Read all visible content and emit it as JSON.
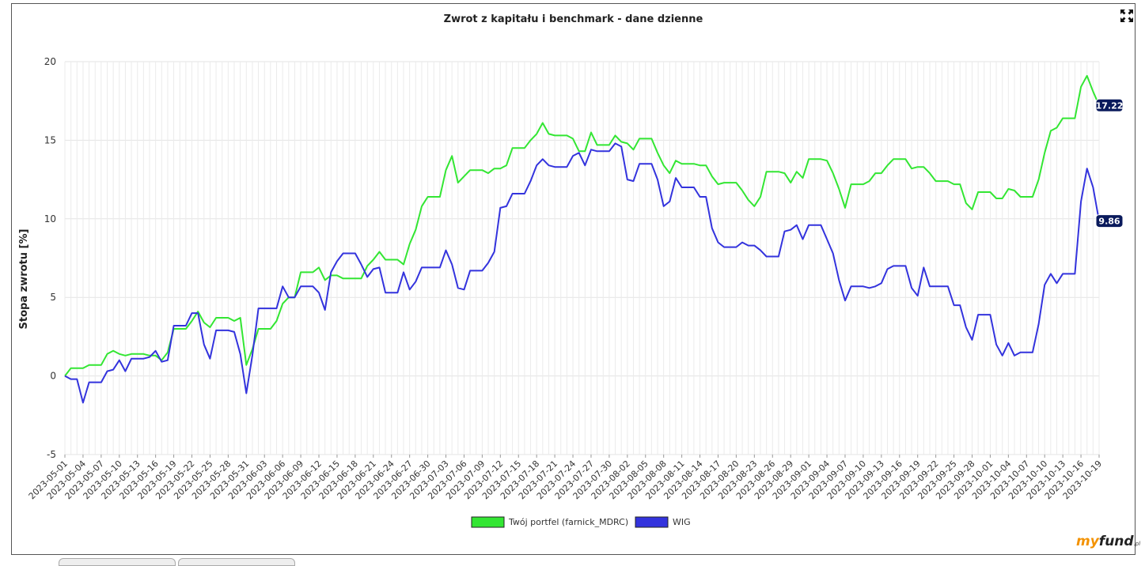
{
  "chart_data": {
    "type": "line",
    "title": "Zwrot z kapitału i benchmark - dane dzienne",
    "ylabel": "Stopa zwrotu [%]",
    "xlabel": "",
    "ylim": [
      -5,
      20
    ],
    "yticks": [
      -5,
      0,
      5,
      10,
      15,
      20
    ],
    "grid": true,
    "legend_position": "bottom",
    "xticks": [
      "2023-05-01",
      "2023-05-04",
      "2023-05-07",
      "2023-05-10",
      "2023-05-13",
      "2023-05-16",
      "2023-05-19",
      "2023-05-22",
      "2023-05-25",
      "2023-05-28",
      "2023-05-31",
      "2023-06-03",
      "2023-06-06",
      "2023-06-09",
      "2023-06-12",
      "2023-06-15",
      "2023-06-18",
      "2023-06-21",
      "2023-06-24",
      "2023-06-27",
      "2023-06-30",
      "2023-07-03",
      "2023-07-06",
      "2023-07-09",
      "2023-07-12",
      "2023-07-15",
      "2023-07-18",
      "2023-07-21",
      "2023-07-24",
      "2023-07-27",
      "2023-07-30",
      "2023-08-02",
      "2023-08-05",
      "2023-08-08",
      "2023-08-11",
      "2023-08-14",
      "2023-08-17",
      "2023-08-20",
      "2023-08-23",
      "2023-08-26",
      "2023-08-29",
      "2023-09-01",
      "2023-09-04",
      "2023-09-07",
      "2023-09-10",
      "2023-09-13",
      "2023-09-16",
      "2023-09-19",
      "2023-09-22",
      "2023-09-25",
      "2023-09-28",
      "2023-10-01",
      "2023-10-04",
      "2023-10-07",
      "2023-10-10",
      "2023-10-13",
      "2023-10-16",
      "2023-10-19"
    ],
    "series": [
      {
        "name": "Twój portfel (farnick_MDRC)",
        "color": "#33e633",
        "end_label": "17.22",
        "values": [
          0,
          0.5,
          0.5,
          0.5,
          0.7,
          0.7,
          0.7,
          1.4,
          1.6,
          1.4,
          1.3,
          1.4,
          1.4,
          1.4,
          1.3,
          1.3,
          1.0,
          1.5,
          3.0,
          3.0,
          3.0,
          3.5,
          4.1,
          3.4,
          3.1,
          3.7,
          3.7,
          3.7,
          3.5,
          3.7,
          0.7,
          1.7,
          3.0,
          3.0,
          3.0,
          3.5,
          4.6,
          5.0,
          5.0,
          6.6,
          6.6,
          6.6,
          6.9,
          6.1,
          6.4,
          6.4,
          6.2,
          6.2,
          6.2,
          6.2,
          7.0,
          7.4,
          7.9,
          7.4,
          7.4,
          7.4,
          7.1,
          8.4,
          9.3,
          10.8,
          11.4,
          11.4,
          11.4,
          13.1,
          14.0,
          12.3,
          12.7,
          13.1,
          13.1,
          13.1,
          12.9,
          13.2,
          13.2,
          13.4,
          14.5,
          14.5,
          14.5,
          15.0,
          15.4,
          16.1,
          15.4,
          15.3,
          15.3,
          15.3,
          15.1,
          14.3,
          14.3,
          15.5,
          14.7,
          14.7,
          14.7,
          15.3,
          14.9,
          14.8,
          14.4,
          15.1,
          15.1,
          15.1,
          14.2,
          13.4,
          12.9,
          13.7,
          13.5,
          13.5,
          13.5,
          13.4,
          13.4,
          12.7,
          12.2,
          12.3,
          12.3,
          12.3,
          11.8,
          11.2,
          10.8,
          11.4,
          13.0,
          13.0,
          13.0,
          12.9,
          12.3,
          13.0,
          12.6,
          13.8,
          13.8,
          13.8,
          13.7,
          12.9,
          11.9,
          10.7,
          12.2,
          12.2,
          12.2,
          12.4,
          12.9,
          12.9,
          13.4,
          13.8,
          13.8,
          13.8,
          13.2,
          13.3,
          13.3,
          12.9,
          12.4,
          12.4,
          12.4,
          12.2,
          12.2,
          11.0,
          10.6,
          11.7,
          11.7,
          11.7,
          11.3,
          11.3,
          11.9,
          11.8,
          11.4,
          11.4,
          11.4,
          12.5,
          14.2,
          15.6,
          15.8,
          16.4,
          16.4,
          16.4,
          18.4,
          19.1,
          18.1,
          17.22
        ]
      },
      {
        "name": "WIG",
        "color": "#3333dd",
        "end_label": "9.86",
        "values": [
          0,
          -0.2,
          -0.2,
          -1.7,
          -0.4,
          -0.4,
          -0.4,
          0.3,
          0.4,
          1.0,
          0.3,
          1.1,
          1.1,
          1.1,
          1.2,
          1.6,
          0.9,
          1.0,
          3.2,
          3.2,
          3.2,
          4.0,
          4.0,
          2.0,
          1.1,
          2.9,
          2.9,
          2.9,
          2.8,
          1.4,
          -1.1,
          1.3,
          4.3,
          4.3,
          4.3,
          4.3,
          5.7,
          5.0,
          5.0,
          5.7,
          5.7,
          5.7,
          5.3,
          4.2,
          6.6,
          7.3,
          7.8,
          7.8,
          7.8,
          7.1,
          6.3,
          6.8,
          6.9,
          5.3,
          5.3,
          5.3,
          6.6,
          5.5,
          6.0,
          6.9,
          6.9,
          6.9,
          6.9,
          8.0,
          7.1,
          5.6,
          5.5,
          6.7,
          6.7,
          6.7,
          7.2,
          7.9,
          10.7,
          10.8,
          11.6,
          11.6,
          11.6,
          12.4,
          13.4,
          13.8,
          13.4,
          13.3,
          13.3,
          13.3,
          14.0,
          14.2,
          13.4,
          14.4,
          14.3,
          14.3,
          14.3,
          14.8,
          14.6,
          12.5,
          12.4,
          13.5,
          13.5,
          13.5,
          12.5,
          10.8,
          11.1,
          12.6,
          12.0,
          12.0,
          12.0,
          11.4,
          11.4,
          9.4,
          8.5,
          8.2,
          8.2,
          8.2,
          8.5,
          8.3,
          8.3,
          8.0,
          7.6,
          7.6,
          7.6,
          9.2,
          9.3,
          9.6,
          8.7,
          9.6,
          9.6,
          9.6,
          8.7,
          7.8,
          6.1,
          4.8,
          5.7,
          5.7,
          5.7,
          5.6,
          5.7,
          5.9,
          6.8,
          7.0,
          7.0,
          7.0,
          5.6,
          5.1,
          6.9,
          5.7,
          5.7,
          5.7,
          5.7,
          4.5,
          4.5,
          3.1,
          2.3,
          3.9,
          3.9,
          3.9,
          2.0,
          1.3,
          2.1,
          1.3,
          1.5,
          1.5,
          1.5,
          3.3,
          5.8,
          6.5,
          5.9,
          6.5,
          6.5,
          6.5,
          11.1,
          13.2,
          12.0,
          9.86
        ]
      }
    ]
  },
  "brand": {
    "name": "myfund",
    "suffix": ".pl"
  }
}
